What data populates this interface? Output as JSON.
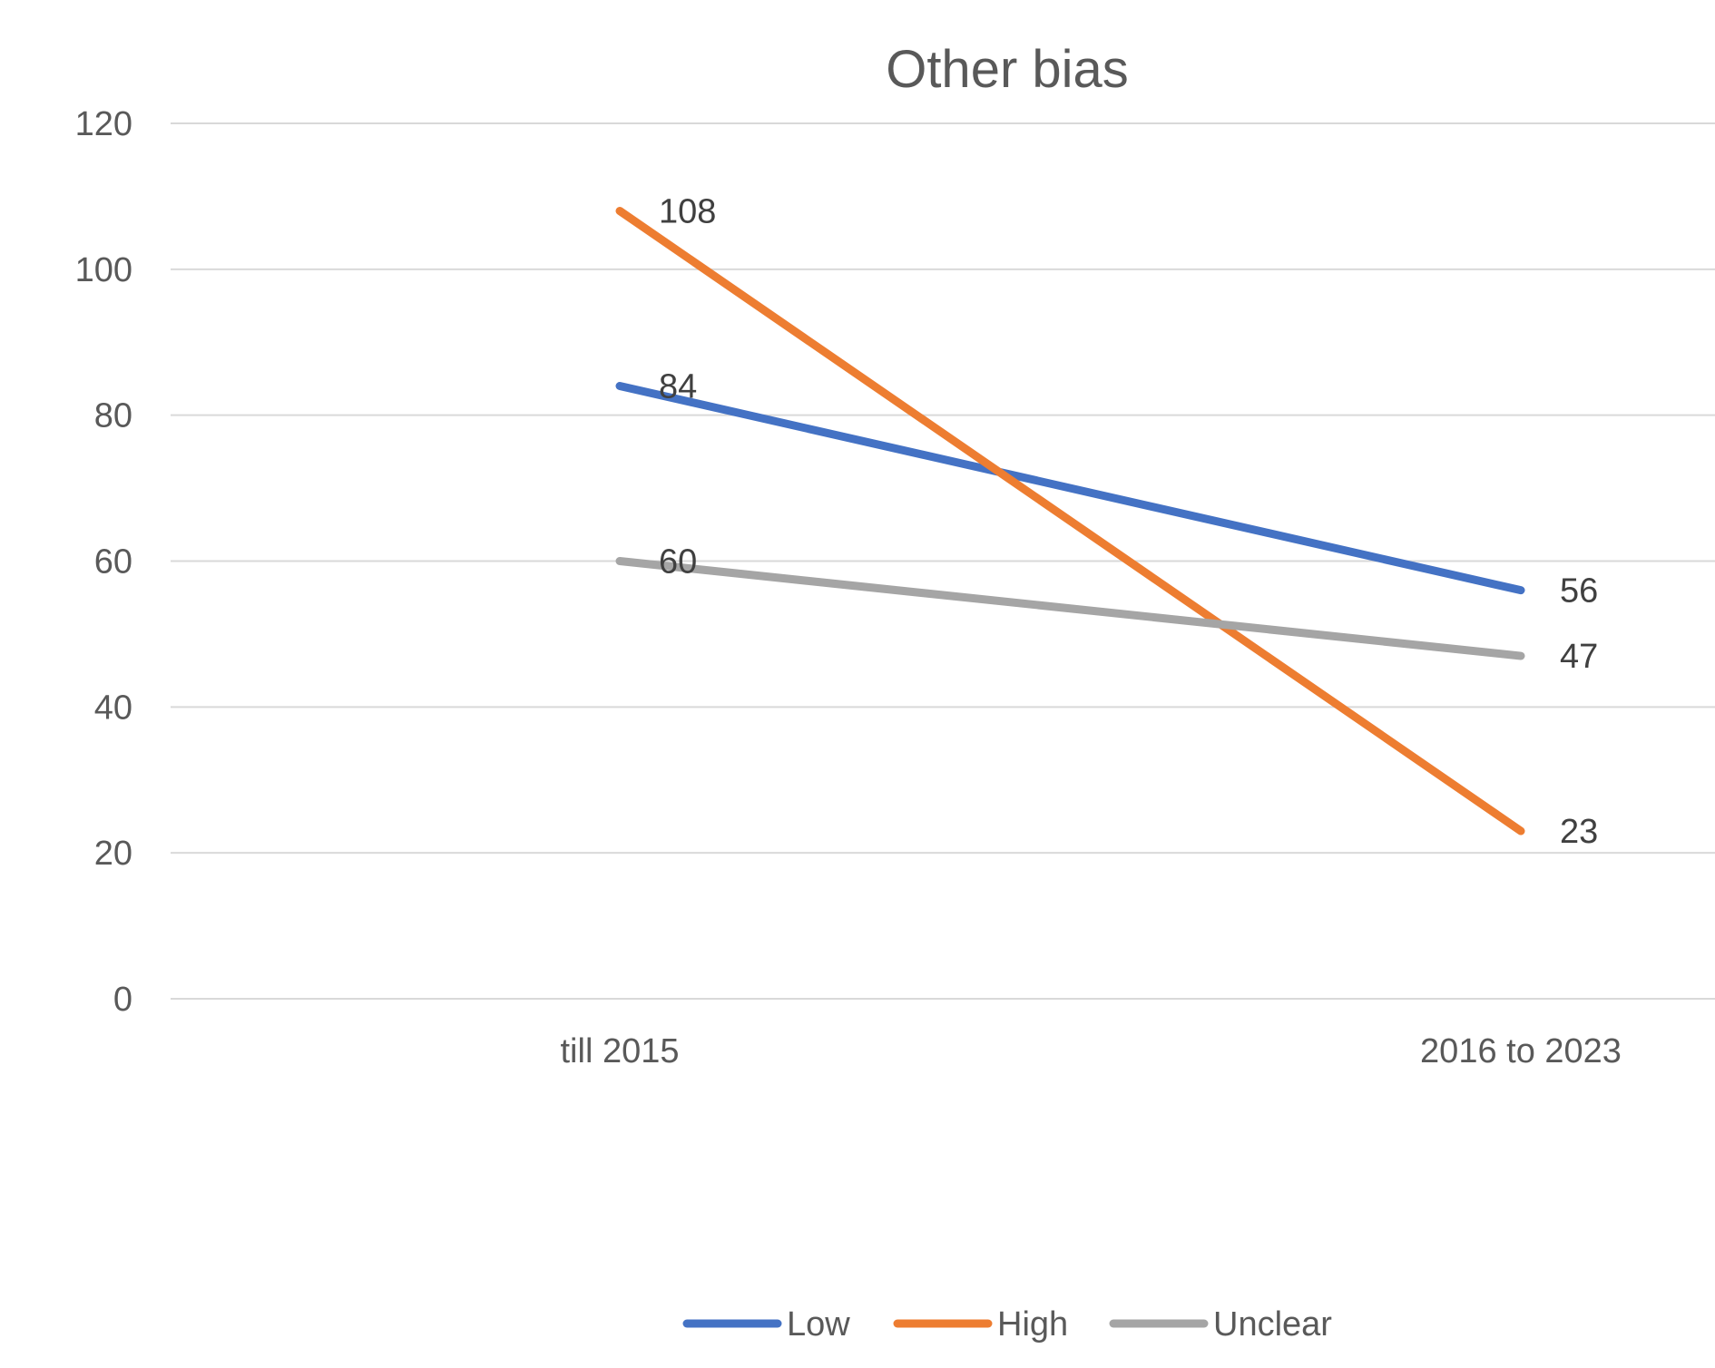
{
  "chart_data": {
    "type": "line",
    "title": "Other bias",
    "categories": [
      "till 2015",
      "2016 to 2023"
    ],
    "ylim": [
      0,
      120
    ],
    "yticks": [
      0,
      20,
      40,
      60,
      80,
      100,
      120
    ],
    "grid": true,
    "legend_position": "bottom",
    "series": [
      {
        "name": "Low",
        "values": [
          84,
          56
        ],
        "color": "#4472c4"
      },
      {
        "name": "High",
        "values": [
          108,
          23
        ],
        "color": "#ed7d31"
      },
      {
        "name": "Unclear",
        "values": [
          60,
          47
        ],
        "color": "#a5a5a5"
      }
    ]
  }
}
